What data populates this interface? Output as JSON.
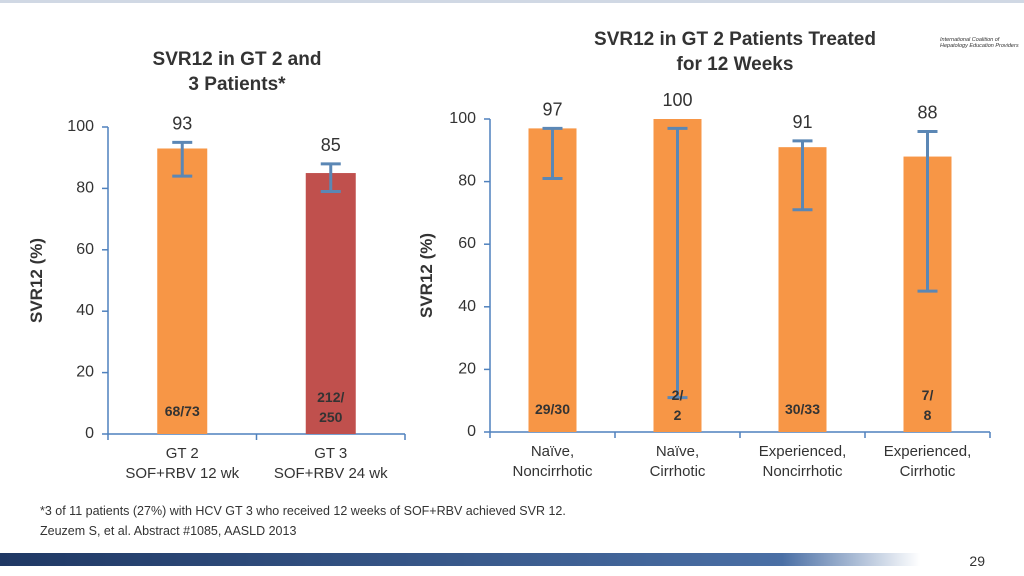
{
  "chart_data": [
    {
      "type": "bar",
      "title": "SVR12 in GT 2 and\n3 Patients*",
      "ylabel": "SVR12 (%)",
      "categories": [
        "GT 2\nSOF+RBV 12 wk",
        "GT 3\nSOF+RBV 24 wk"
      ],
      "values": [
        93,
        85
      ],
      "colors": [
        "#f79646",
        "#c0504d"
      ],
      "ci": [
        [
          84,
          95
        ],
        [
          79,
          88
        ]
      ],
      "count_labels": [
        "68/73",
        "212/\n250"
      ],
      "ylim": [
        0,
        100
      ],
      "yticks": [
        0,
        20,
        40,
        60,
        80,
        100
      ]
    },
    {
      "type": "bar",
      "title": "SVR12 in GT 2 Patients Treated\nfor 12 Weeks",
      "ylabel": "SVR12 (%)",
      "categories": [
        "Naïve,\nNoncirrhotic",
        "Naïve,\nCirrhotic",
        "Experienced,\nNoncirrhotic",
        "Experienced,\nCirrhotic"
      ],
      "values": [
        97,
        100,
        91,
        88
      ],
      "colors": [
        "#f79646",
        "#f79646",
        "#f79646",
        "#f79646"
      ],
      "ci": [
        [
          81,
          97
        ],
        [
          11,
          97
        ],
        [
          71,
          93
        ],
        [
          45,
          96
        ]
      ],
      "count_labels": [
        "29/30",
        "2/\n2",
        "30/33",
        "7/\n8"
      ],
      "ylim": [
        0,
        100
      ],
      "yticks": [
        0,
        20,
        40,
        60,
        80,
        100
      ]
    }
  ],
  "footnote": "*3 of 11 patients (27%) with HCV GT 3 who received 12 weeks of SOF+RBV achieved SVR 12.",
  "reference": "Zeuzem S, et al. Abstract #1085, AASLD 2013",
  "logo": "International Coalition of\nHepatology Education Providers",
  "page_number": "29"
}
